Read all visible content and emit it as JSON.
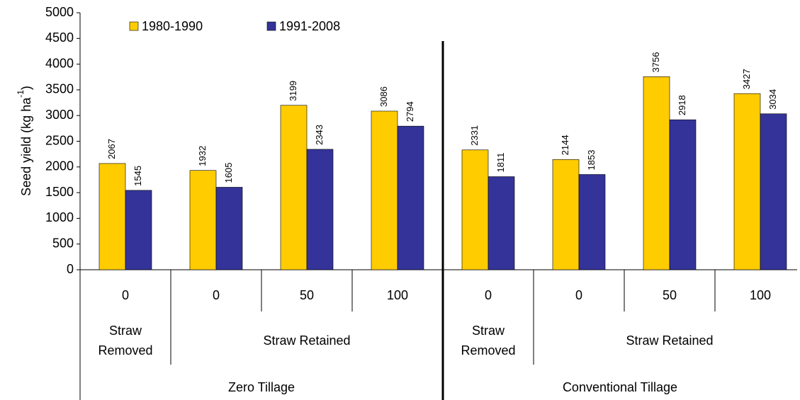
{
  "chart_data": {
    "type": "bar",
    "ylabel": [
      "Seed yield (kg ha",
      "-1",
      ")"
    ],
    "categories": [
      "0",
      "0",
      "50",
      "100",
      "0",
      "0",
      "50",
      "100"
    ],
    "series": [
      {
        "name": "1980-1990",
        "color": "#ffcc00",
        "values": [
          2067,
          1932,
          3199,
          3086,
          2331,
          2144,
          3756,
          3427
        ]
      },
      {
        "name": "1991-2008",
        "color": "#333399",
        "values": [
          1545,
          1605,
          2343,
          2794,
          1811,
          1853,
          2918,
          3034
        ]
      }
    ],
    "subgroups": [
      {
        "lines": [
          "Straw",
          "Removed"
        ],
        "span": 1
      },
      {
        "lines": [
          "Straw Retained"
        ],
        "span": 3
      },
      {
        "lines": [
          "Straw",
          "Removed"
        ],
        "span": 1
      },
      {
        "lines": [
          "Straw Retained"
        ],
        "span": 3
      }
    ],
    "groups": [
      {
        "label": "Zero Tillage",
        "span": 4
      },
      {
        "label": "Conventional Tillage",
        "span": 4
      }
    ],
    "ylim": [
      0,
      5000
    ],
    "yticks": [
      0,
      500,
      1000,
      1500,
      2000,
      2500,
      3000,
      3500,
      4000,
      4500,
      5000
    ],
    "legend": "top-left",
    "grid": false
  }
}
